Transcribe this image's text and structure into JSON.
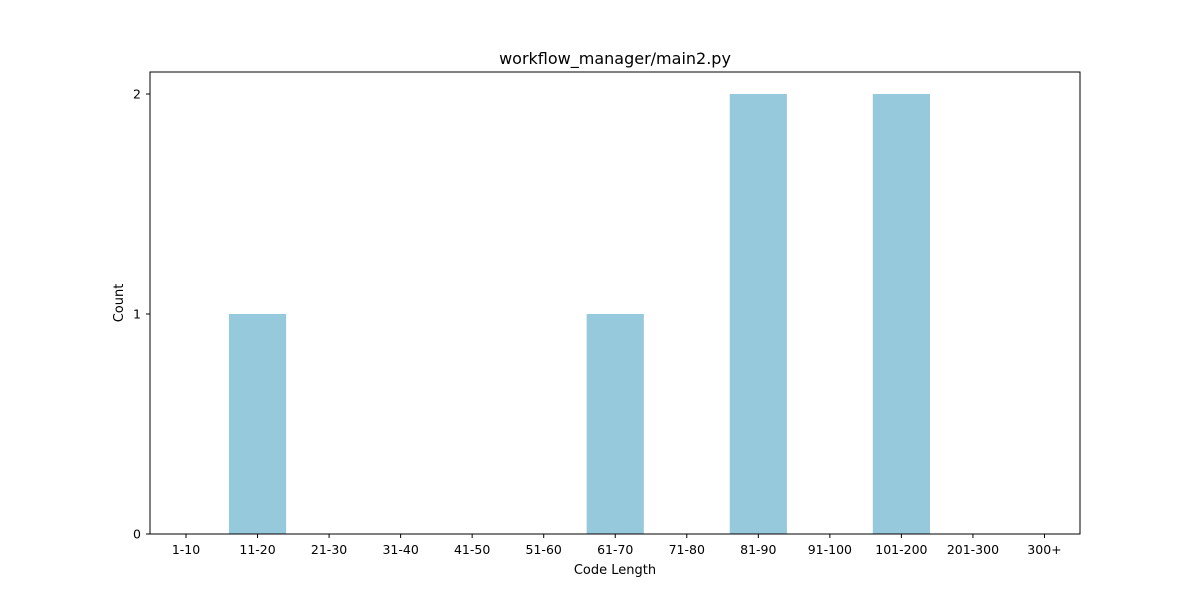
{
  "chart_data": {
    "type": "bar",
    "title": "workflow_manager/main2.py",
    "xlabel": "Code Length",
    "ylabel": "Count",
    "categories": [
      "1-10",
      "11-20",
      "21-30",
      "31-40",
      "41-50",
      "51-60",
      "61-70",
      "71-80",
      "81-90",
      "91-100",
      "101-200",
      "201-300",
      "300+"
    ],
    "values": [
      0,
      1,
      0,
      0,
      0,
      0,
      1,
      0,
      2,
      0,
      2,
      0,
      0
    ],
    "yticks": [
      0,
      1,
      2
    ],
    "ylim": [
      0,
      2.1
    ],
    "grid": false,
    "bar_color": "#96c9dc"
  }
}
